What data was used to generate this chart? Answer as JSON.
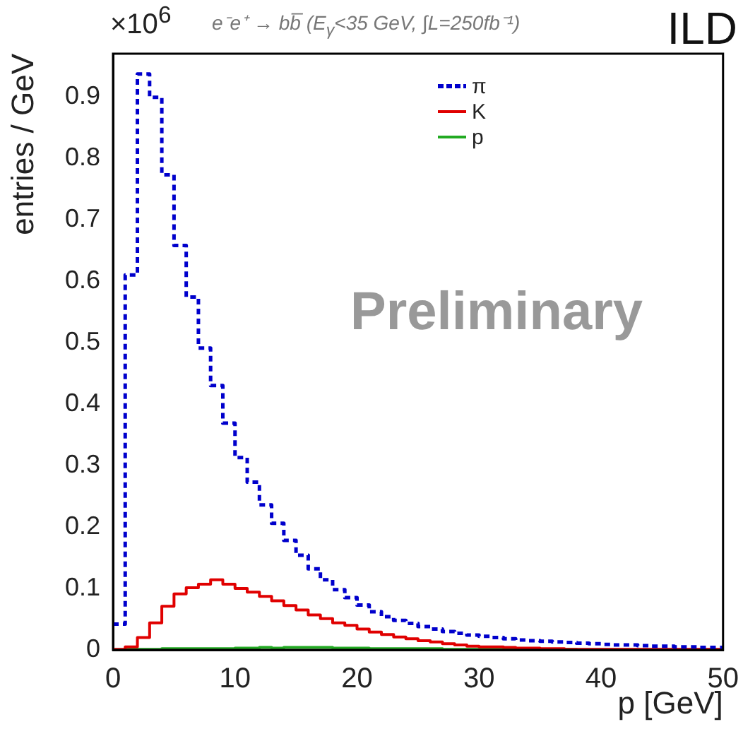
{
  "chart_data": {
    "type": "histogram",
    "title": "e⁻e⁺ → bb̅ (E$_{γ}$<35 GeV, ∫L=250fb⁻¹)",
    "xlabel": "p [GeV]",
    "ylabel": "entries / GeV",
    "annotations": [
      "×10$^{6}$",
      "ILD",
      "Preliminary"
    ],
    "bins": [
      0,
      1,
      2,
      3,
      4,
      5,
      6,
      7,
      8,
      9,
      10,
      11,
      12,
      13,
      14,
      15,
      16,
      17,
      18,
      19,
      20,
      21,
      22,
      23,
      24,
      25,
      26,
      27,
      28,
      29,
      30,
      31,
      32,
      33,
      34,
      35,
      36,
      37,
      38,
      39,
      40,
      41,
      42,
      43,
      44,
      45,
      46,
      47,
      48,
      49,
      50
    ],
    "series": [
      {
        "name": "π",
        "color": "#0000cc",
        "line_style": "dashed",
        "values": [
          0.042,
          0.61,
          0.937,
          0.899,
          0.773,
          0.658,
          0.574,
          0.491,
          0.43,
          0.369,
          0.313,
          0.273,
          0.236,
          0.206,
          0.178,
          0.154,
          0.132,
          0.114,
          0.098,
          0.085,
          0.073,
          0.062,
          0.054,
          0.048,
          0.043,
          0.038,
          0.034,
          0.03,
          0.027,
          0.024,
          0.022,
          0.02,
          0.018,
          0.016,
          0.015,
          0.014,
          0.013,
          0.012,
          0.011,
          0.01,
          0.009,
          0.008,
          0.008,
          0.007,
          0.006,
          0.006,
          0.005,
          0.005,
          0.004,
          0.004
        ]
      },
      {
        "name": "K",
        "color": "#e00000",
        "line_style": "solid",
        "values": [
          0.001,
          0.005,
          0.02,
          0.044,
          0.071,
          0.091,
          0.101,
          0.107,
          0.114,
          0.107,
          0.1,
          0.094,
          0.087,
          0.08,
          0.072,
          0.065,
          0.057,
          0.051,
          0.044,
          0.04,
          0.034,
          0.029,
          0.025,
          0.021,
          0.018,
          0.015,
          0.013,
          0.01,
          0.008,
          0.006,
          0.005,
          0.005,
          0.004,
          0.003,
          0.003,
          0.002,
          0.002,
          0.001,
          0.001,
          0.001,
          0.001,
          0.001,
          0.001,
          0.001,
          0.001,
          0.001,
          0.001,
          0.001,
          0.001,
          0.001
        ]
      },
      {
        "name": "p",
        "color": "#22aa22",
        "line_style": "solid",
        "values": [
          0,
          0.001,
          0.001,
          0.001,
          0.002,
          0.002,
          0.002,
          0.002,
          0.002,
          0.002,
          0.003,
          0.003,
          0.004,
          0.003,
          0.004,
          0.004,
          0.004,
          0.004,
          0.003,
          0.003,
          0.003,
          0.002,
          0.002,
          0.002,
          0.002,
          0.002,
          0.002,
          0.001,
          0.001,
          0.001,
          0.001,
          0.001,
          0.001,
          0.001,
          0.001,
          0.001,
          0.001,
          0.001,
          0,
          0,
          0,
          0,
          0,
          0,
          0,
          0,
          0,
          0,
          0,
          0
        ]
      }
    ],
    "xlim": [
      0,
      50
    ],
    "xticks": [
      0,
      10,
      20,
      30,
      40,
      50
    ],
    "ylim": [
      0,
      0.97
    ],
    "yticks": [
      0,
      0.1,
      0.2,
      0.3,
      0.4,
      0.5,
      0.6,
      0.7,
      0.8,
      0.9
    ],
    "grid": false,
    "legend": "top right"
  }
}
